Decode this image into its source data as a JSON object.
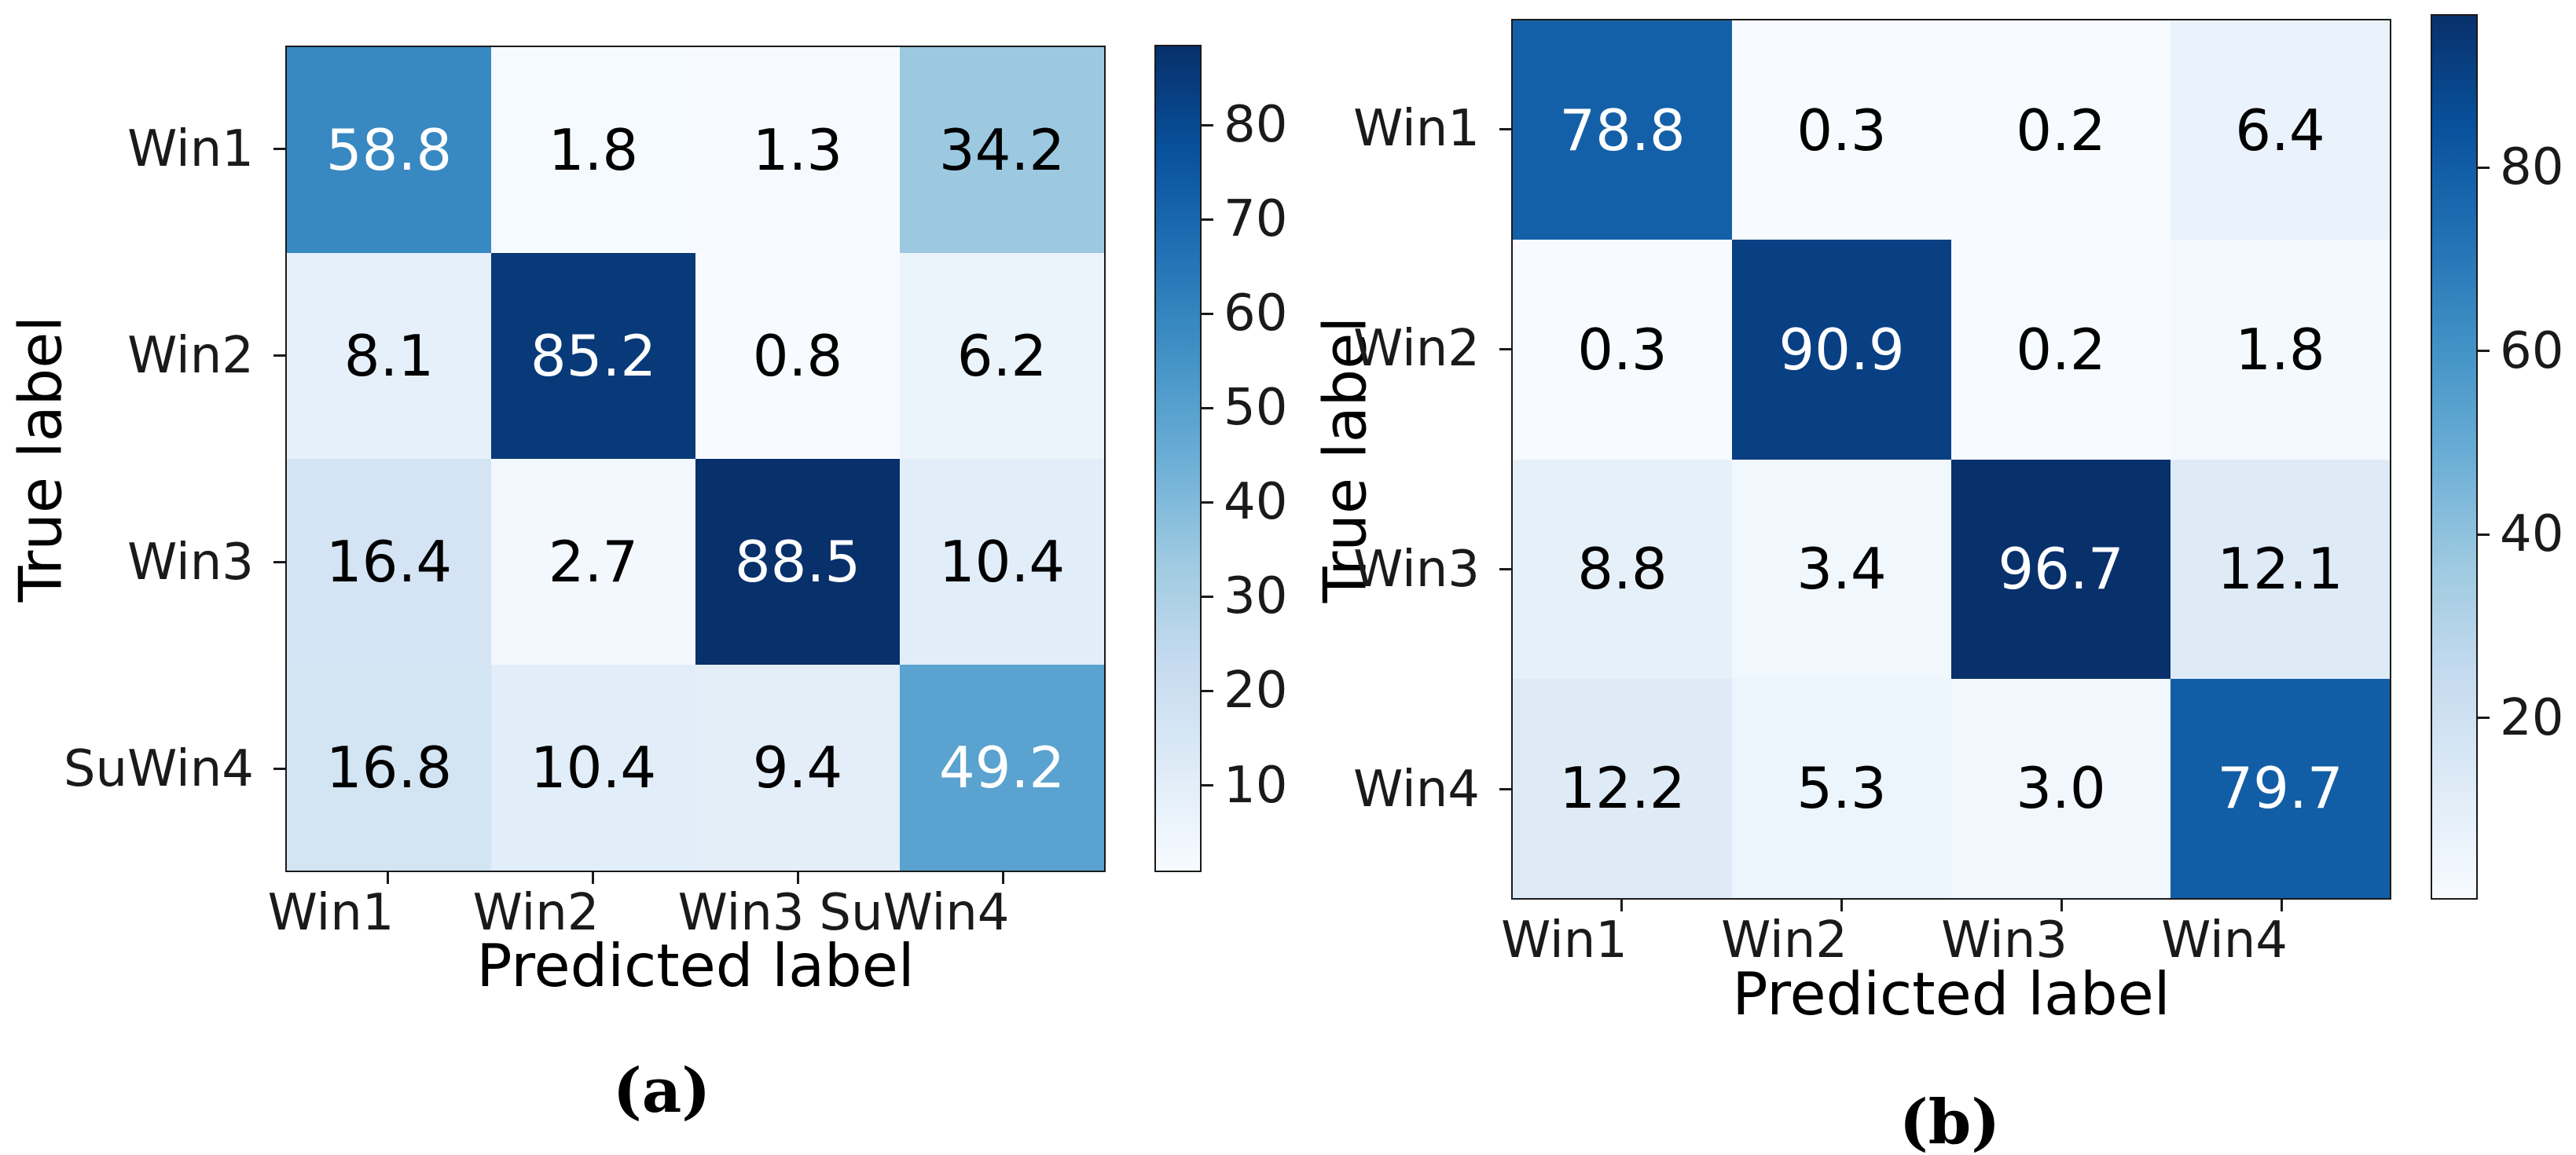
{
  "style": {
    "background": "#ffffff",
    "axis_color": "#1a1a1a",
    "cell_text_dark": "#000000",
    "cell_text_light": "#ffffff",
    "colormap_name": "Blues",
    "colormap_anchors": [
      "#f7fbff",
      "#deebf7",
      "#c6dbef",
      "#9ecae1",
      "#6baed6",
      "#4292c6",
      "#2171b5",
      "#08519c",
      "#08306b"
    ]
  },
  "chart_data": [
    {
      "id": "a",
      "type": "heatmap",
      "caption": "(a)",
      "xlabel": "Predicted label",
      "ylabel": "True label",
      "x_categories": [
        "Win1",
        "Win2",
        "Win3",
        "SuWin4"
      ],
      "y_categories": [
        "Win1",
        "Win2",
        "Win3",
        "SuWin4"
      ],
      "values": [
        [
          58.8,
          1.8,
          1.3,
          34.2
        ],
        [
          8.1,
          85.2,
          0.8,
          6.2
        ],
        [
          16.4,
          2.7,
          88.5,
          10.4
        ],
        [
          16.8,
          10.4,
          9.4,
          49.2
        ]
      ],
      "value_range": [
        0.8,
        88.5
      ],
      "colorbar_ticks": [
        80,
        70,
        60,
        50,
        40,
        30,
        20,
        10
      ],
      "legend_position": "right-colorbar",
      "grid": false
    },
    {
      "id": "b",
      "type": "heatmap",
      "caption": "(b)",
      "xlabel": "Predicted label",
      "ylabel": "True label",
      "x_categories": [
        "Win1",
        "Win2",
        "Win3",
        "Win4"
      ],
      "y_categories": [
        "Win1",
        "Win2",
        "Win3",
        "Win4"
      ],
      "values": [
        [
          78.8,
          0.3,
          0.2,
          6.4
        ],
        [
          0.3,
          90.9,
          0.2,
          1.8
        ],
        [
          8.8,
          3.4,
          96.7,
          12.1
        ],
        [
          12.2,
          5.3,
          3.0,
          79.7
        ]
      ],
      "value_range": [
        0.2,
        96.7
      ],
      "colorbar_ticks": [
        80,
        60,
        40,
        20
      ],
      "legend_position": "right-colorbar",
      "grid": false
    }
  ]
}
